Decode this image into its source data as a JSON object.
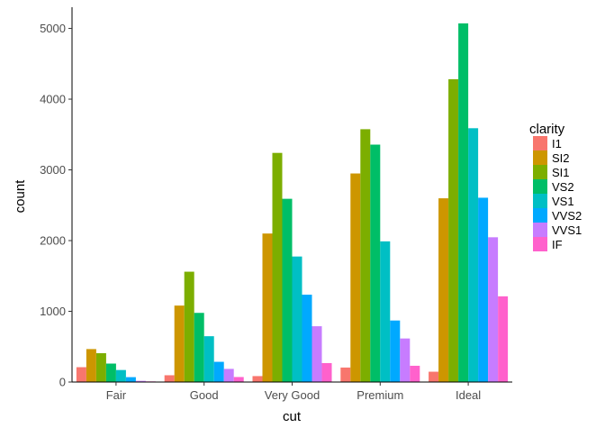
{
  "chart_data": {
    "type": "bar",
    "title": "",
    "xlabel": "cut",
    "ylabel": "count",
    "categories": [
      "Fair",
      "Good",
      "Very Good",
      "Premium",
      "Ideal"
    ],
    "ylim": [
      0,
      5300
    ],
    "yticks": [
      0,
      1000,
      2000,
      3000,
      4000,
      5000
    ],
    "grid": false,
    "legend_title": "clarity",
    "legend_position": "right",
    "series": [
      {
        "name": "I1",
        "color": "#F8766D",
        "values": [
          210,
          96,
          84,
          205,
          146
        ]
      },
      {
        "name": "SI2",
        "color": "#CD9600",
        "values": [
          466,
          1081,
          2100,
          2949,
          2598
        ]
      },
      {
        "name": "SI1",
        "color": "#7CAE00",
        "values": [
          408,
          1560,
          3240,
          3575,
          4282
        ]
      },
      {
        "name": "VS2",
        "color": "#00BE67",
        "values": [
          261,
          978,
          2591,
          3357,
          5071
        ]
      },
      {
        "name": "VS1",
        "color": "#00BFC4",
        "values": [
          170,
          648,
          1775,
          1989,
          3589
        ]
      },
      {
        "name": "VVS2",
        "color": "#00A9FF",
        "values": [
          69,
          286,
          1235,
          870,
          2606
        ]
      },
      {
        "name": "VVS1",
        "color": "#C77CFF",
        "values": [
          17,
          186,
          789,
          616,
          2047
        ]
      },
      {
        "name": "IF",
        "color": "#FF61CC",
        "values": [
          9,
          71,
          268,
          230,
          1212
        ]
      }
    ]
  }
}
